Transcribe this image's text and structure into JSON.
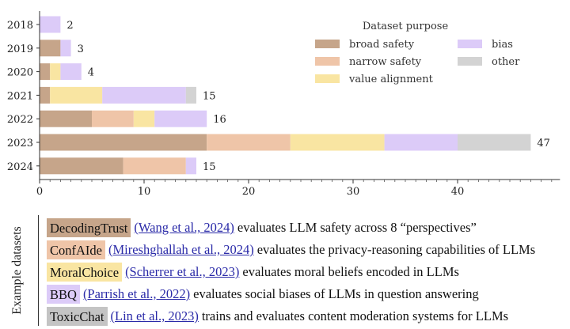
{
  "chart_data": {
    "type": "bar",
    "orientation": "horizontal",
    "stacked": true,
    "categories": [
      "2018",
      "2019",
      "2020",
      "2021",
      "2022",
      "2023",
      "2024"
    ],
    "series": [
      {
        "name": "broad safety",
        "color": "#c6a58a",
        "values": [
          0,
          2,
          1,
          1,
          5,
          16,
          8
        ]
      },
      {
        "name": "narrow safety",
        "color": "#efc5a8",
        "values": [
          0,
          0,
          0,
          0,
          4,
          8,
          6
        ]
      },
      {
        "name": "value alignment",
        "color": "#f9e5a2",
        "values": [
          0,
          0,
          1,
          5,
          2,
          9,
          0
        ]
      },
      {
        "name": "bias",
        "color": "#dccbf8",
        "values": [
          2,
          1,
          2,
          8,
          5,
          7,
          1
        ]
      },
      {
        "name": "other",
        "color": "#d3d3d3",
        "values": [
          0,
          0,
          0,
          1,
          0,
          7,
          0
        ]
      }
    ],
    "totals": [
      2,
      3,
      4,
      15,
      16,
      47,
      15
    ],
    "xticks": [
      0,
      10,
      20,
      30,
      40
    ],
    "xlim": [
      0,
      49.8
    ],
    "title": "",
    "xlabel": "",
    "ylabel": "",
    "grid": false,
    "legend": {
      "title": "Dataset purpose",
      "placement": "top-right",
      "columns": [
        [
          "broad safety",
          "narrow safety",
          "value alignment"
        ],
        [
          "bias",
          "other"
        ]
      ]
    }
  },
  "examples": {
    "axis_label": "Example datasets",
    "items": [
      {
        "name": "DecodingTrust",
        "color": "#c6a58a",
        "citation": "(Wang et al., 2024)",
        "description": "evaluates LLM safety across 8 “perspectives”"
      },
      {
        "name": "ConfAIde",
        "color": "#efc5a8",
        "citation": "(Mireshghallah et al., 2024)",
        "description": "evaluates the privacy-reasoning capabilities of LLMs"
      },
      {
        "name": "MoralChoice",
        "color": "#f9e5a2",
        "citation": "(Scherrer et al., 2023)",
        "description": "evaluates moral beliefs encoded in LLMs"
      },
      {
        "name": "BBQ",
        "color": "#dccbf8",
        "citation": "(Parrish et al., 2022)",
        "description": "evaluates social biases of LLMs in question answering"
      },
      {
        "name": "ToxicChat",
        "color": "#c4c4c4",
        "citation": "(Lin et al., 2023)",
        "description": "trains and evaluates content moderation systems for LLMs"
      }
    ]
  }
}
